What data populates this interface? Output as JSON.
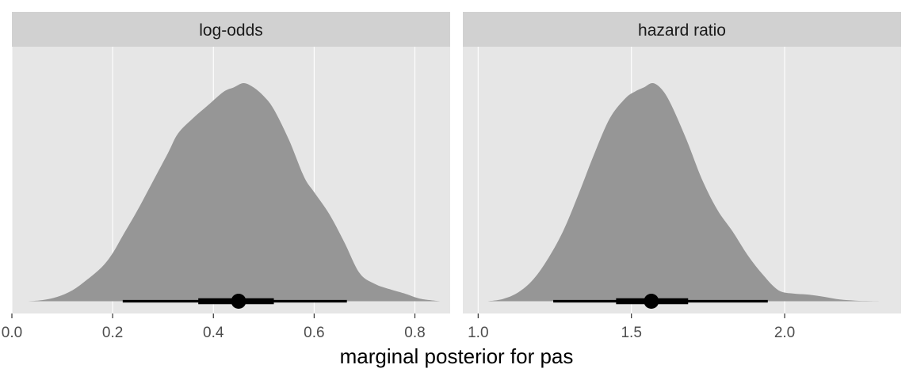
{
  "chart_data": {
    "type": "area",
    "chart_kind": "faceted posterior density (halfeye) with median point and interval bars",
    "xlabel": "marginal posterior for pas",
    "ylabel": "",
    "colors": {
      "density": "#969696",
      "panel_bg": "#e6e6e6",
      "strip_bg": "#d1d1d1",
      "interval": "#000000"
    },
    "facets": [
      {
        "label": "log-odds",
        "xlim": [
          0.0,
          0.87
        ],
        "ticks": [
          0.0,
          0.2,
          0.4,
          0.6,
          0.8
        ],
        "tick_labels": [
          "0.0",
          "0.2",
          "0.4",
          "0.6",
          "0.8"
        ],
        "density": {
          "x": [
            0.03,
            0.06,
            0.09,
            0.12,
            0.15,
            0.18,
            0.2,
            0.22,
            0.25,
            0.28,
            0.31,
            0.33,
            0.36,
            0.39,
            0.42,
            0.44,
            0.46,
            0.48,
            0.5,
            0.52,
            0.55,
            0.58,
            0.6,
            0.63,
            0.66,
            0.69,
            0.72,
            0.75,
            0.78,
            0.81,
            0.85
          ],
          "y": [
            0.0,
            0.005,
            0.02,
            0.05,
            0.1,
            0.16,
            0.22,
            0.3,
            0.42,
            0.55,
            0.68,
            0.77,
            0.84,
            0.9,
            0.96,
            0.98,
            1.0,
            0.98,
            0.94,
            0.88,
            0.74,
            0.57,
            0.5,
            0.4,
            0.27,
            0.13,
            0.08,
            0.055,
            0.035,
            0.012,
            0.0
          ]
        },
        "median": 0.45,
        "interval_66": [
          0.37,
          0.52
        ],
        "interval_95": [
          0.22,
          0.665
        ]
      },
      {
        "label": "hazard ratio",
        "xlim": [
          0.95,
          2.38
        ],
        "ticks": [
          1.0,
          1.5,
          2.0
        ],
        "tick_labels": [
          "1.0",
          "1.5",
          "2.0"
        ],
        "density": {
          "x": [
            1.03,
            1.08,
            1.13,
            1.18,
            1.23,
            1.28,
            1.33,
            1.38,
            1.43,
            1.48,
            1.51,
            1.54,
            1.57,
            1.6,
            1.63,
            1.68,
            1.73,
            1.78,
            1.83,
            1.88,
            1.93,
            1.98,
            2.03,
            2.08,
            2.13,
            2.18,
            2.23,
            2.28,
            2.34
          ],
          "y": [
            0.0,
            0.01,
            0.04,
            0.1,
            0.2,
            0.33,
            0.5,
            0.68,
            0.84,
            0.93,
            0.96,
            0.98,
            1.0,
            0.97,
            0.9,
            0.74,
            0.56,
            0.42,
            0.32,
            0.21,
            0.12,
            0.05,
            0.035,
            0.03,
            0.02,
            0.008,
            0.003,
            0.001,
            0.0
          ]
        },
        "median": 1.565,
        "interval_66": [
          1.45,
          1.685
        ],
        "interval_95": [
          1.245,
          1.945
        ]
      }
    ]
  }
}
